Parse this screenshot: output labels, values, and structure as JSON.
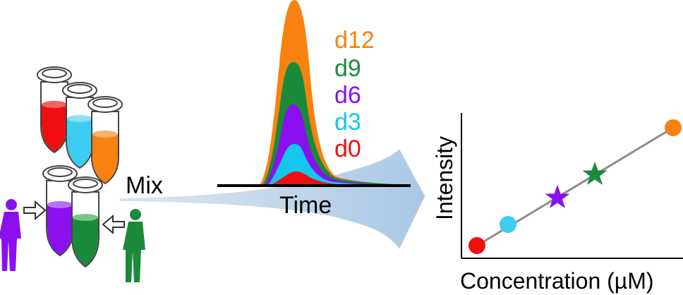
{
  "labels": {
    "mix": "Mix",
    "time": "Time",
    "x_axis": "Concentration (µM)",
    "y_axis": "Intensity"
  },
  "legend": [
    {
      "label": "d12",
      "color": "#f7820f"
    },
    {
      "label": "d9",
      "color": "#1a8a3a"
    },
    {
      "label": "d6",
      "color": "#8a10ef"
    },
    {
      "label": "d3",
      "color": "#14c6ee"
    },
    {
      "label": "d0",
      "color": "#ee1010"
    }
  ],
  "colors": {
    "red": "#ee1010",
    "cyan": "#3ecdf2",
    "orange": "#f7820f",
    "purple": "#8a10ef",
    "green": "#1a8a3a",
    "flow": "#b5cfe6",
    "line": "#8c8c8c"
  }
}
